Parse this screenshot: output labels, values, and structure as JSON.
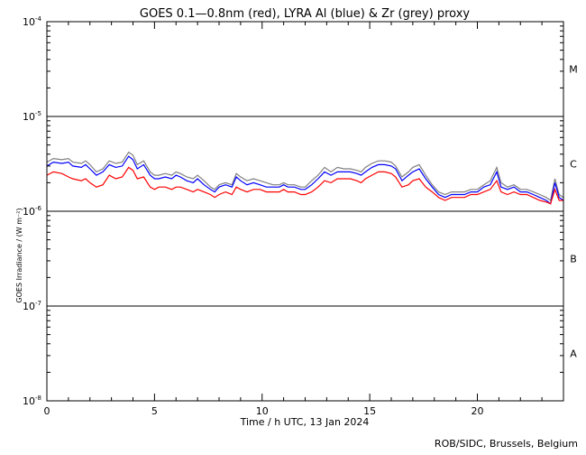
{
  "chart_data": {
    "type": "line",
    "title": "GOES 0.1—0.8nm (red), LYRA Al (blue) & Zr (grey) proxy",
    "xlabel": "Time / h UTC, 13 Jan 2024",
    "ylabel": "GOES Irradiance / (W m⁻²)",
    "xlim": [
      0,
      24
    ],
    "ylim": [
      1e-08,
      0.0001
    ],
    "yscale": "log",
    "x_ticks": [
      0,
      5,
      10,
      15,
      20
    ],
    "x_tick_labels": [
      "0",
      "5",
      "10",
      "15",
      "20"
    ],
    "y_ticks": [
      {
        "value": 0.0001,
        "base": "10",
        "exp": "-4"
      },
      {
        "value": 1e-05,
        "base": "10",
        "exp": "-5"
      },
      {
        "value": 1e-06,
        "base": "10",
        "exp": "-6"
      },
      {
        "value": 1e-07,
        "base": "10",
        "exp": "-7"
      },
      {
        "value": 1e-08,
        "base": "10",
        "exp": "-8"
      }
    ],
    "reference_lines": [
      1e-05,
      1e-06,
      1e-07
    ],
    "flare_classes": [
      {
        "label": "M",
        "y": 3.16e-05
      },
      {
        "label": "C",
        "y": 3.16e-06
      },
      {
        "label": "B",
        "y": 3.16e-07
      },
      {
        "label": "A",
        "y": 3.16e-08
      }
    ],
    "series": [
      {
        "color": "#808080",
        "x": [
          0.0,
          0.3,
          0.7,
          1.0,
          1.2,
          1.6,
          1.8,
          2.0,
          2.3,
          2.6,
          2.9,
          3.2,
          3.5,
          3.8,
          4.0,
          4.2,
          4.5,
          4.8,
          5.0,
          5.2,
          5.5,
          5.8,
          6.0,
          6.2,
          6.5,
          6.8,
          7.0,
          7.3,
          7.6,
          7.8,
          8.0,
          8.3,
          8.6,
          8.8,
          9.0,
          9.3,
          9.6,
          9.9,
          10.2,
          10.5,
          10.8,
          11.0,
          11.2,
          11.5,
          11.8,
          12.0,
          12.3,
          12.6,
          12.9,
          13.2,
          13.5,
          13.8,
          14.1,
          14.4,
          14.6,
          14.8,
          15.1,
          15.4,
          15.7,
          16.0,
          16.2,
          16.5,
          16.8,
          17.0,
          17.3,
          17.6,
          17.9,
          18.2,
          18.5,
          18.8,
          19.1,
          19.4,
          19.7,
          20.0,
          20.3,
          20.6,
          20.9,
          21.1,
          21.4,
          21.7,
          22.0,
          22.3,
          22.6,
          22.9,
          23.2,
          23.4,
          23.6,
          23.8,
          24.0
        ],
        "values": [
          3.3e-06,
          3.6e-06,
          3.5e-06,
          3.6e-06,
          3.3e-06,
          3.2e-06,
          3.4e-06,
          3.1e-06,
          2.6e-06,
          2.8e-06,
          3.4e-06,
          3.2e-06,
          3.3e-06,
          4.2e-06,
          3.9e-06,
          3.1e-06,
          3.4e-06,
          2.6e-06,
          2.4e-06,
          2.4e-06,
          2.5e-06,
          2.4e-06,
          2.6e-06,
          2.5e-06,
          2.3e-06,
          2.2e-06,
          2.4e-06,
          2.1e-06,
          1.8e-06,
          1.7e-06,
          1.9e-06,
          2e-06,
          1.9e-06,
          2.5e-06,
          2.3e-06,
          2.1e-06,
          2.2e-06,
          2.1e-06,
          2e-06,
          1.9e-06,
          1.9e-06,
          2e-06,
          1.9e-06,
          1.9e-06,
          1.8e-06,
          1.8e-06,
          2.1e-06,
          2.4e-06,
          2.9e-06,
          2.6e-06,
          2.9e-06,
          2.8e-06,
          2.8e-06,
          2.7e-06,
          2.6e-06,
          2.9e-06,
          3.2e-06,
          3.4e-06,
          3.4e-06,
          3.3e-06,
          3e-06,
          2.3e-06,
          2.6e-06,
          2.9e-06,
          3.1e-06,
          2.4e-06,
          1.9e-06,
          1.6e-06,
          1.5e-06,
          1.6e-06,
          1.6e-06,
          1.6e-06,
          1.7e-06,
          1.7e-06,
          1.9e-06,
          2.1e-06,
          2.9e-06,
          2e-06,
          1.8e-06,
          1.9e-06,
          1.7e-06,
          1.7e-06,
          1.6e-06,
          1.5e-06,
          1.4e-06,
          1.3e-06,
          2.2e-06,
          1.5e-06,
          1.4e-06
        ]
      },
      {
        "color": "#0000ff",
        "x": [
          0.0,
          0.3,
          0.7,
          1.0,
          1.2,
          1.6,
          1.8,
          2.0,
          2.3,
          2.6,
          2.9,
          3.2,
          3.5,
          3.8,
          4.0,
          4.2,
          4.5,
          4.8,
          5.0,
          5.2,
          5.5,
          5.8,
          6.0,
          6.2,
          6.5,
          6.8,
          7.0,
          7.3,
          7.6,
          7.8,
          8.0,
          8.3,
          8.6,
          8.8,
          9.0,
          9.3,
          9.6,
          9.9,
          10.2,
          10.5,
          10.8,
          11.0,
          11.2,
          11.5,
          11.8,
          12.0,
          12.3,
          12.6,
          12.9,
          13.2,
          13.5,
          13.8,
          14.1,
          14.4,
          14.6,
          14.8,
          15.1,
          15.4,
          15.7,
          16.0,
          16.2,
          16.5,
          16.8,
          17.0,
          17.3,
          17.6,
          17.9,
          18.2,
          18.5,
          18.8,
          19.1,
          19.4,
          19.7,
          20.0,
          20.3,
          20.6,
          20.9,
          21.1,
          21.4,
          21.7,
          22.0,
          22.3,
          22.6,
          22.9,
          23.2,
          23.4,
          23.6,
          23.8,
          24.0
        ],
        "values": [
          3e-06,
          3.3e-06,
          3.2e-06,
          3.3e-06,
          3e-06,
          2.9e-06,
          3.1e-06,
          2.8e-06,
          2.4e-06,
          2.6e-06,
          3.1e-06,
          2.9e-06,
          3e-06,
          3.8e-06,
          3.5e-06,
          2.8e-06,
          3.1e-06,
          2.4e-06,
          2.2e-06,
          2.2e-06,
          2.3e-06,
          2.2e-06,
          2.4e-06,
          2.3e-06,
          2.1e-06,
          2e-06,
          2.2e-06,
          1.9e-06,
          1.7e-06,
          1.6e-06,
          1.8e-06,
          1.9e-06,
          1.8e-06,
          2.3e-06,
          2.1e-06,
          1.9e-06,
          2e-06,
          1.9e-06,
          1.8e-06,
          1.8e-06,
          1.8e-06,
          1.9e-06,
          1.8e-06,
          1.8e-06,
          1.7e-06,
          1.7e-06,
          1.9e-06,
          2.2e-06,
          2.6e-06,
          2.4e-06,
          2.6e-06,
          2.6e-06,
          2.6e-06,
          2.5e-06,
          2.4e-06,
          2.6e-06,
          2.9e-06,
          3.1e-06,
          3.1e-06,
          3e-06,
          2.8e-06,
          2.1e-06,
          2.4e-06,
          2.6e-06,
          2.8e-06,
          2.2e-06,
          1.8e-06,
          1.5e-06,
          1.4e-06,
          1.5e-06,
          1.5e-06,
          1.5e-06,
          1.6e-06,
          1.6e-06,
          1.8e-06,
          1.9e-06,
          2.6e-06,
          1.8e-06,
          1.7e-06,
          1.8e-06,
          1.6e-06,
          1.6e-06,
          1.5e-06,
          1.4e-06,
          1.3e-06,
          1.2e-06,
          2e-06,
          1.4e-06,
          1.3e-06
        ]
      },
      {
        "color": "#ff0000",
        "x": [
          0.0,
          0.3,
          0.7,
          1.0,
          1.2,
          1.6,
          1.8,
          2.0,
          2.3,
          2.6,
          2.9,
          3.2,
          3.5,
          3.8,
          4.0,
          4.2,
          4.5,
          4.8,
          5.0,
          5.2,
          5.5,
          5.8,
          6.0,
          6.2,
          6.5,
          6.8,
          7.0,
          7.3,
          7.6,
          7.8,
          8.0,
          8.3,
          8.6,
          8.8,
          9.0,
          9.3,
          9.6,
          9.9,
          10.2,
          10.5,
          10.8,
          11.0,
          11.2,
          11.5,
          11.8,
          12.0,
          12.3,
          12.6,
          12.9,
          13.2,
          13.5,
          13.8,
          14.1,
          14.4,
          14.6,
          14.8,
          15.1,
          15.4,
          15.7,
          16.0,
          16.2,
          16.5,
          16.8,
          17.0,
          17.3,
          17.6,
          17.9,
          18.2,
          18.5,
          18.8,
          19.1,
          19.4,
          19.7,
          20.0,
          20.3,
          20.6,
          20.9,
          21.1,
          21.4,
          21.7,
          22.0,
          22.3,
          22.6,
          22.9,
          23.2,
          23.4,
          23.6,
          23.8,
          24.0
        ],
        "values": [
          2.4e-06,
          2.6e-06,
          2.5e-06,
          2.3e-06,
          2.2e-06,
          2.1e-06,
          2.2e-06,
          2e-06,
          1.8e-06,
          1.9e-06,
          2.4e-06,
          2.2e-06,
          2.3e-06,
          2.9e-06,
          2.7e-06,
          2.2e-06,
          2.3e-06,
          1.8e-06,
          1.7e-06,
          1.8e-06,
          1.8e-06,
          1.7e-06,
          1.8e-06,
          1.8e-06,
          1.7e-06,
          1.6e-06,
          1.7e-06,
          1.6e-06,
          1.5e-06,
          1.4e-06,
          1.5e-06,
          1.6e-06,
          1.5e-06,
          1.8e-06,
          1.7e-06,
          1.6e-06,
          1.7e-06,
          1.7e-06,
          1.6e-06,
          1.6e-06,
          1.6e-06,
          1.7e-06,
          1.6e-06,
          1.6e-06,
          1.5e-06,
          1.5e-06,
          1.6e-06,
          1.8e-06,
          2.1e-06,
          2e-06,
          2.2e-06,
          2.2e-06,
          2.2e-06,
          2.1e-06,
          2e-06,
          2.2e-06,
          2.4e-06,
          2.6e-06,
          2.6e-06,
          2.5e-06,
          2.3e-06,
          1.8e-06,
          1.9e-06,
          2.1e-06,
          2.2e-06,
          1.8e-06,
          1.6e-06,
          1.4e-06,
          1.3e-06,
          1.4e-06,
          1.4e-06,
          1.4e-06,
          1.5e-06,
          1.5e-06,
          1.6e-06,
          1.7e-06,
          2.1e-06,
          1.6e-06,
          1.5e-06,
          1.6e-06,
          1.5e-06,
          1.5e-06,
          1.4e-06,
          1.3e-06,
          1.25e-06,
          1.2e-06,
          1.7e-06,
          1.3e-06,
          1.3e-06
        ]
      }
    ],
    "grid": false,
    "legend": "none"
  },
  "credit": "ROB/SIDC, Brussels, Belgium"
}
